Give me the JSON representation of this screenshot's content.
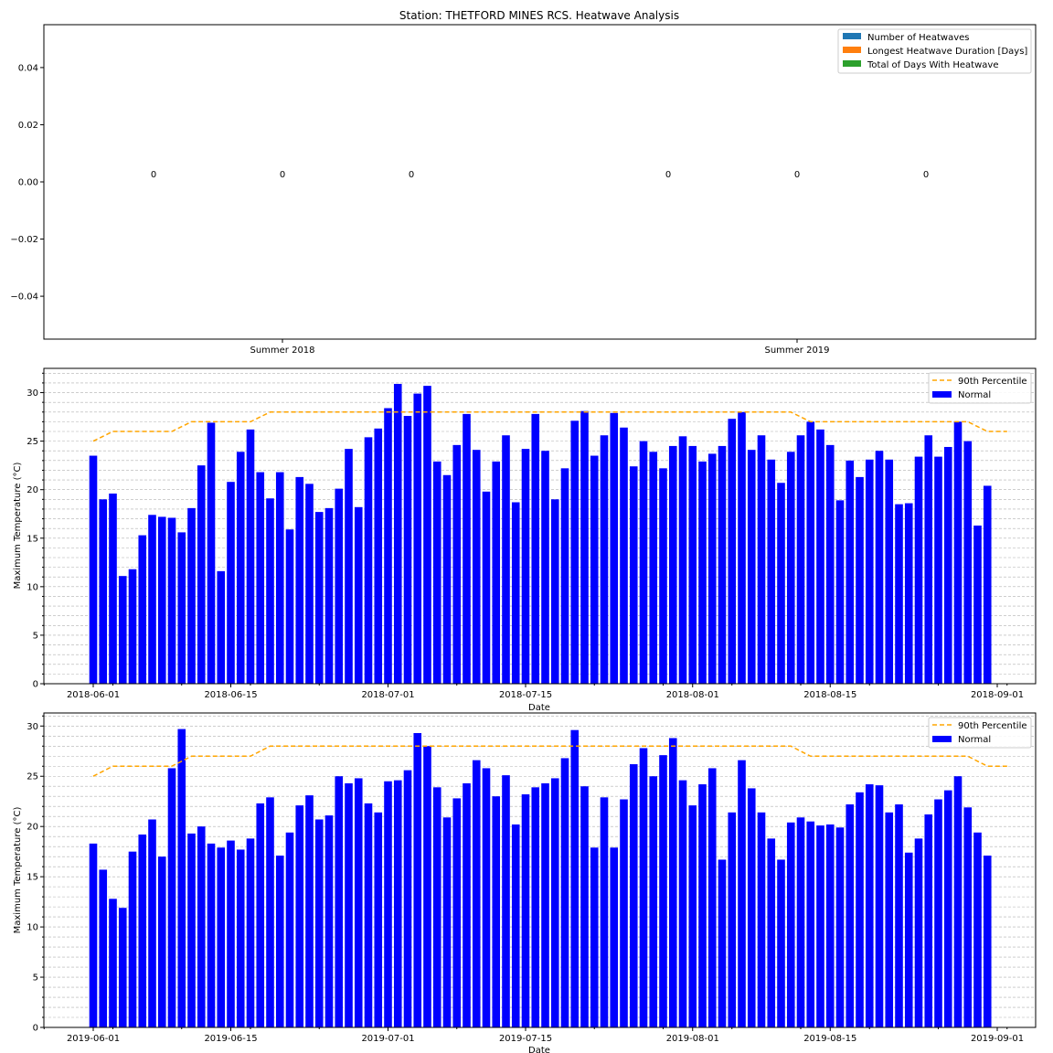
{
  "colors": {
    "heatwaves": "#1f77b4",
    "longest": "#ff7f0e",
    "total": "#2ca02c",
    "normal": "#0000ff",
    "percentile": "#ffa500",
    "grid": "#b0b0b0"
  },
  "chart_data": [
    {
      "type": "bar",
      "title": "Station: THETFORD MINES RCS. Heatwave Analysis",
      "categories": [
        "Summer 2018",
        "Summer 2019"
      ],
      "series": [
        {
          "name": "Number of Heatwaves",
          "values": [
            0,
            0
          ]
        },
        {
          "name": "Longest Heatwave Duration [Days]",
          "values": [
            0,
            0
          ]
        },
        {
          "name": "Total of Days With Heatwave",
          "values": [
            0,
            0
          ]
        }
      ],
      "bar_labels": [
        "0",
        "0",
        "0",
        "0",
        "0",
        "0"
      ],
      "ylim": [
        -0.055,
        0.055
      ],
      "yticks": [
        "0.04",
        "0.02",
        "0.00",
        "−0.02",
        "−0.04"
      ],
      "ytick_values": [
        0.04,
        0.02,
        0,
        -0.02,
        -0.04
      ],
      "legend": "top-right"
    },
    {
      "type": "bar",
      "xlabel": "Date",
      "ylabel": "Maximum Temperature (°C)",
      "ylim": [
        0,
        32.5
      ],
      "yticks": [
        0,
        5,
        10,
        15,
        20,
        25,
        30
      ],
      "xticks": [
        "2018-06-01",
        "2018-06-15",
        "2018-07-01",
        "2018-07-15",
        "2018-08-01",
        "2018-08-15",
        "2018-09-01"
      ],
      "xtick_days": [
        0,
        14,
        30,
        44,
        61,
        75,
        92
      ],
      "start_date": "2018-06-01",
      "grid": "horizontal dashed",
      "legend": "top-right",
      "series": [
        {
          "name": "90th Percentile",
          "type": "line",
          "values": [
            25,
            25.5,
            26,
            26,
            26,
            26,
            26,
            26,
            26,
            26.5,
            27,
            27,
            27,
            27,
            27,
            27,
            27,
            27.5,
            28,
            28,
            28,
            28,
            28,
            28,
            28,
            28,
            28,
            28,
            28,
            28,
            28,
            28,
            28,
            28,
            28,
            28,
            28,
            28,
            28,
            28,
            28,
            28,
            28,
            28,
            28,
            28,
            28,
            28,
            28,
            28,
            28,
            28,
            28,
            28,
            28,
            28,
            28,
            28,
            28,
            28,
            28,
            28,
            28,
            28,
            28,
            28,
            28,
            28,
            28,
            28,
            28,
            28,
            27.5,
            27,
            27,
            27,
            27,
            27,
            27,
            27,
            27,
            27,
            27,
            27,
            27,
            27,
            27,
            27,
            27,
            27,
            26.5,
            26,
            26,
            26
          ]
        },
        {
          "name": "Normal",
          "type": "bar",
          "values": [
            23.5,
            19,
            19.6,
            11.1,
            11.8,
            15.3,
            17.4,
            17.2,
            17.1,
            15.6,
            18.1,
            22.5,
            26.9,
            11.6,
            20.8,
            23.9,
            26.2,
            21.8,
            19.1,
            21.8,
            15.9,
            21.3,
            20.6,
            17.7,
            18.1,
            20.1,
            24.2,
            18.2,
            25.4,
            26.3,
            28.4,
            30.9,
            27.6,
            29.9,
            30.7,
            22.9,
            21.5,
            24.6,
            27.8,
            24.1,
            19.8,
            22.9,
            25.6,
            18.7,
            24.2,
            27.8,
            24,
            19,
            22.2,
            27.1,
            28.1,
            23.5,
            25.6,
            27.9,
            26.4,
            22.4,
            25,
            23.9,
            22.2,
            24.5,
            25.5,
            24.5,
            22.9,
            23.7,
            24.5,
            27.3,
            28,
            24.1,
            25.6,
            23.1,
            20.7,
            23.9,
            25.6,
            27,
            26.2,
            24.6,
            18.9,
            23,
            21.3,
            23.1,
            24,
            23.1,
            18.5,
            18.6,
            23.4,
            25.6,
            23.4,
            24.4,
            27,
            25,
            16.3,
            20.4
          ]
        }
      ]
    },
    {
      "type": "bar",
      "xlabel": "Date",
      "ylabel": "Maximum Temperature (°C)",
      "ylim": [
        0,
        31.3
      ],
      "yticks": [
        0,
        5,
        10,
        15,
        20,
        25,
        30
      ],
      "xticks": [
        "2019-06-01",
        "2019-06-15",
        "2019-07-01",
        "2019-07-15",
        "2019-08-01",
        "2019-08-15",
        "2019-09-01"
      ],
      "xtick_days": [
        0,
        14,
        30,
        44,
        61,
        75,
        92
      ],
      "start_date": "2019-06-01",
      "grid": "horizontal dashed",
      "legend": "top-right",
      "series": [
        {
          "name": "90th Percentile",
          "type": "line",
          "values": [
            25,
            25.5,
            26,
            26,
            26,
            26,
            26,
            26,
            26,
            26.5,
            27,
            27,
            27,
            27,
            27,
            27,
            27,
            27.5,
            28,
            28,
            28,
            28,
            28,
            28,
            28,
            28,
            28,
            28,
            28,
            28,
            28,
            28,
            28,
            28,
            28,
            28,
            28,
            28,
            28,
            28,
            28,
            28,
            28,
            28,
            28,
            28,
            28,
            28,
            28,
            28,
            28,
            28,
            28,
            28,
            28,
            28,
            28,
            28,
            28,
            28,
            28,
            28,
            28,
            28,
            28,
            28,
            28,
            28,
            28,
            28,
            28,
            28,
            27.5,
            27,
            27,
            27,
            27,
            27,
            27,
            27,
            27,
            27,
            27,
            27,
            27,
            27,
            27,
            27,
            27,
            27,
            26.5,
            26,
            26,
            26
          ]
        },
        {
          "name": "Normal",
          "type": "bar",
          "values": [
            18.3,
            15.7,
            12.8,
            11.9,
            17.5,
            19.2,
            20.7,
            17,
            25.8,
            29.7,
            19.3,
            20,
            18.3,
            17.9,
            18.6,
            17.7,
            18.8,
            22.3,
            22.9,
            17.1,
            19.4,
            22.1,
            23.1,
            20.7,
            21.1,
            25,
            24.3,
            24.8,
            22.3,
            21.4,
            24.5,
            24.6,
            25.6,
            29.3,
            28,
            23.9,
            20.9,
            22.8,
            24.3,
            26.6,
            25.8,
            23,
            25.1,
            20.2,
            23.2,
            23.9,
            24.3,
            24.8,
            26.8,
            29.6,
            24,
            17.9,
            22.9,
            17.9,
            22.7,
            26.2,
            27.8,
            25,
            27.1,
            28.8,
            24.6,
            22.1,
            24.2,
            25.8,
            16.7,
            21.4,
            26.6,
            23.8,
            21.4,
            18.8,
            16.7,
            20.4,
            20.9,
            20.5,
            20.1,
            20.2,
            19.9,
            22.2,
            23.4,
            24.2,
            24.1,
            21.4,
            22.2,
            17.4,
            18.8,
            21.2,
            22.7,
            23.6,
            25,
            21.9,
            19.4,
            17.1
          ]
        }
      ]
    }
  ]
}
